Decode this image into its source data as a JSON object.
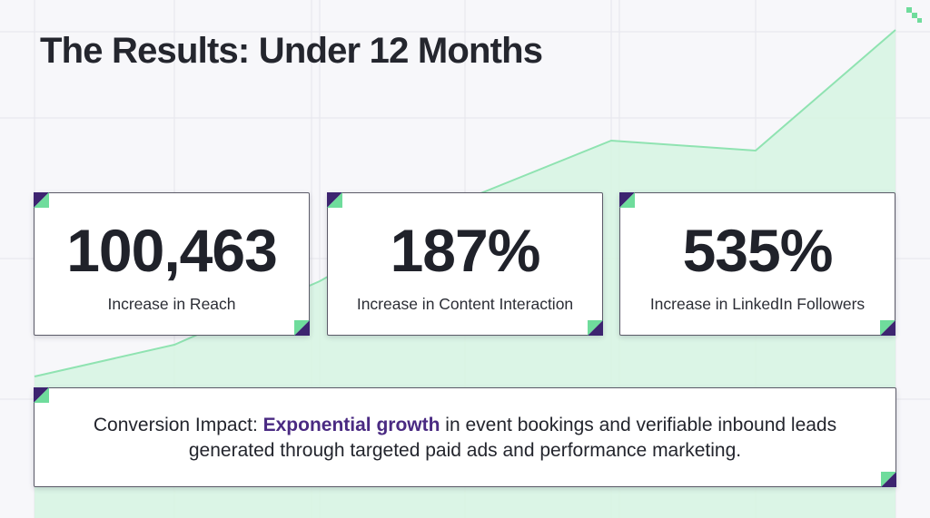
{
  "title": "The Results: Under 12 Months",
  "colors": {
    "accent_green": "#6fdc9c",
    "accent_purple": "#3d2470",
    "highlight_purple": "#4a2a82",
    "background": "#f7f7fa"
  },
  "stats": [
    {
      "value": "100,463",
      "label": "Increase in Reach"
    },
    {
      "value": "187%",
      "label": "Increase in Content Interaction"
    },
    {
      "value": "535%",
      "label": "Increase in LinkedIn Followers"
    }
  ],
  "impact": {
    "prefix": "Conversion Impact: ",
    "highlight": "Exponential growth",
    "suffix": " in event bookings and verifiable inbound leads generated through targeted paid ads and performance marketing."
  },
  "icons": {
    "corner_logo": "green-square-logo-icon",
    "card_corner": "corner-triangle-icon"
  }
}
